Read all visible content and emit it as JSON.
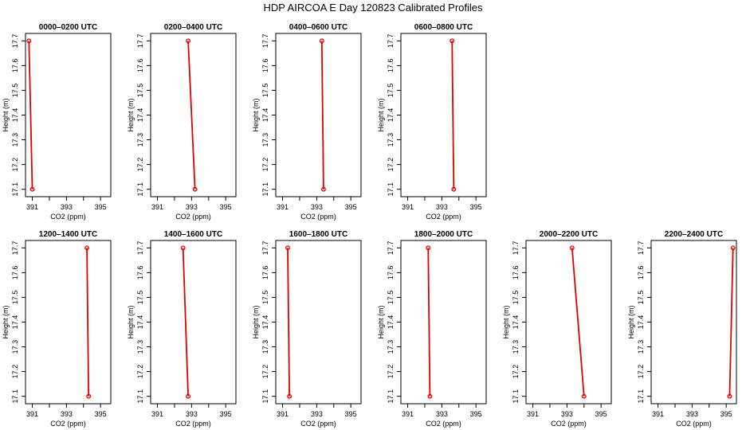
{
  "title": "HDP AIRCOA E  Day 120823  Calibrated Profiles",
  "colors": {
    "line": "#e00000",
    "marker": "#e00000",
    "axis": "#000000"
  },
  "chart_data": [
    {
      "type": "line",
      "title": "0000–0200 UTC",
      "xlabel": "CO2 (ppm)",
      "ylabel": "Height (m)",
      "xlim": [
        390.6,
        395.6
      ],
      "ylim": [
        17.07,
        17.73
      ],
      "xticks": [
        391,
        393,
        395
      ],
      "xticks_unlabeled": [
        392,
        394
      ],
      "yticks": [
        17.1,
        17.2,
        17.3,
        17.4,
        17.5,
        17.6,
        17.7
      ],
      "points": [
        {
          "x": 390.8,
          "y": 17.7
        },
        {
          "x": 391.0,
          "y": 17.1
        }
      ]
    },
    {
      "type": "line",
      "title": "0200–0400 UTC",
      "xlabel": "CO2 (ppm)",
      "ylabel": "Height (m)",
      "xlim": [
        390.6,
        395.6
      ],
      "ylim": [
        17.07,
        17.73
      ],
      "xticks": [
        391,
        393,
        395
      ],
      "xticks_unlabeled": [
        392,
        394
      ],
      "yticks": [
        17.1,
        17.2,
        17.3,
        17.4,
        17.5,
        17.6,
        17.7
      ],
      "points": [
        {
          "x": 392.8,
          "y": 17.7
        },
        {
          "x": 393.2,
          "y": 17.1
        }
      ]
    },
    {
      "type": "line",
      "title": "0400–0600 UTC",
      "xlabel": "CO2 (ppm)",
      "ylabel": "Height (m)",
      "xlim": [
        390.6,
        395.6
      ],
      "ylim": [
        17.07,
        17.73
      ],
      "xticks": [
        391,
        393,
        395
      ],
      "xticks_unlabeled": [
        392,
        394
      ],
      "yticks": [
        17.1,
        17.2,
        17.3,
        17.4,
        17.5,
        17.6,
        17.7
      ],
      "points": [
        {
          "x": 393.3,
          "y": 17.7
        },
        {
          "x": 393.4,
          "y": 17.1
        }
      ]
    },
    {
      "type": "line",
      "title": "0600–0800 UTC",
      "xlabel": "CO2 (ppm)",
      "ylabel": "Height (m)",
      "xlim": [
        390.6,
        395.6
      ],
      "ylim": [
        17.07,
        17.73
      ],
      "xticks": [
        391,
        393,
        395
      ],
      "xticks_unlabeled": [
        392,
        394
      ],
      "yticks": [
        17.1,
        17.2,
        17.3,
        17.4,
        17.5,
        17.6,
        17.7
      ],
      "points": [
        {
          "x": 393.6,
          "y": 17.7
        },
        {
          "x": 393.7,
          "y": 17.1
        }
      ]
    },
    {
      "type": "line",
      "title": "1200–1400 UTC",
      "xlabel": "CO2 (ppm)",
      "ylabel": "Height (m)",
      "xlim": [
        390.6,
        395.6
      ],
      "ylim": [
        17.07,
        17.73
      ],
      "xticks": [
        391,
        393,
        395
      ],
      "xticks_unlabeled": [
        392,
        394
      ],
      "yticks": [
        17.1,
        17.2,
        17.3,
        17.4,
        17.5,
        17.6,
        17.7
      ],
      "points": [
        {
          "x": 394.2,
          "y": 17.7
        },
        {
          "x": 394.3,
          "y": 17.1
        }
      ]
    },
    {
      "type": "line",
      "title": "1400–1600 UTC",
      "xlabel": "CO2 (ppm)",
      "ylabel": "Height (m)",
      "xlim": [
        390.6,
        395.6
      ],
      "ylim": [
        17.07,
        17.73
      ],
      "xticks": [
        391,
        393,
        395
      ],
      "xticks_unlabeled": [
        392,
        394
      ],
      "yticks": [
        17.1,
        17.2,
        17.3,
        17.4,
        17.5,
        17.6,
        17.7
      ],
      "points": [
        {
          "x": 392.5,
          "y": 17.7
        },
        {
          "x": 392.8,
          "y": 17.1
        }
      ]
    },
    {
      "type": "line",
      "title": "1600–1800 UTC",
      "xlabel": "CO2 (ppm)",
      "ylabel": "Height (m)",
      "xlim": [
        390.6,
        395.6
      ],
      "ylim": [
        17.07,
        17.73
      ],
      "xticks": [
        391,
        393,
        395
      ],
      "xticks_unlabeled": [
        392,
        394
      ],
      "yticks": [
        17.1,
        17.2,
        17.3,
        17.4,
        17.5,
        17.6,
        17.7
      ],
      "points": [
        {
          "x": 391.3,
          "y": 17.7
        },
        {
          "x": 391.4,
          "y": 17.1
        }
      ]
    },
    {
      "type": "line",
      "title": "1800–2000 UTC",
      "xlabel": "CO2 (ppm)",
      "ylabel": "Height (m)",
      "xlim": [
        390.6,
        395.6
      ],
      "ylim": [
        17.07,
        17.73
      ],
      "xticks": [
        391,
        393,
        395
      ],
      "xticks_unlabeled": [
        392,
        394
      ],
      "yticks": [
        17.1,
        17.2,
        17.3,
        17.4,
        17.5,
        17.6,
        17.7
      ],
      "points": [
        {
          "x": 392.2,
          "y": 17.7
        },
        {
          "x": 392.3,
          "y": 17.1
        }
      ]
    },
    {
      "type": "line",
      "title": "2000–2200 UTC",
      "xlabel": "CO2 (ppm)",
      "ylabel": "Height (m)",
      "xlim": [
        390.6,
        395.6
      ],
      "ylim": [
        17.07,
        17.73
      ],
      "xticks": [
        391,
        393,
        395
      ],
      "xticks_unlabeled": [
        392,
        394
      ],
      "yticks": [
        17.1,
        17.2,
        17.3,
        17.4,
        17.5,
        17.6,
        17.7
      ],
      "points": [
        {
          "x": 393.3,
          "y": 17.7
        },
        {
          "x": 394.0,
          "y": 17.1
        }
      ]
    },
    {
      "type": "line",
      "title": "2200–2400 UTC",
      "xlabel": "CO2 (ppm)",
      "ylabel": "Height (m)",
      "xlim": [
        390.6,
        395.6
      ],
      "ylim": [
        17.07,
        17.73
      ],
      "xticks": [
        391,
        393,
        395
      ],
      "xticks_unlabeled": [
        392,
        394
      ],
      "yticks": [
        17.1,
        17.2,
        17.3,
        17.4,
        17.5,
        17.6,
        17.7
      ],
      "points": [
        {
          "x": 395.4,
          "y": 17.7
        },
        {
          "x": 395.2,
          "y": 17.1
        }
      ]
    }
  ]
}
